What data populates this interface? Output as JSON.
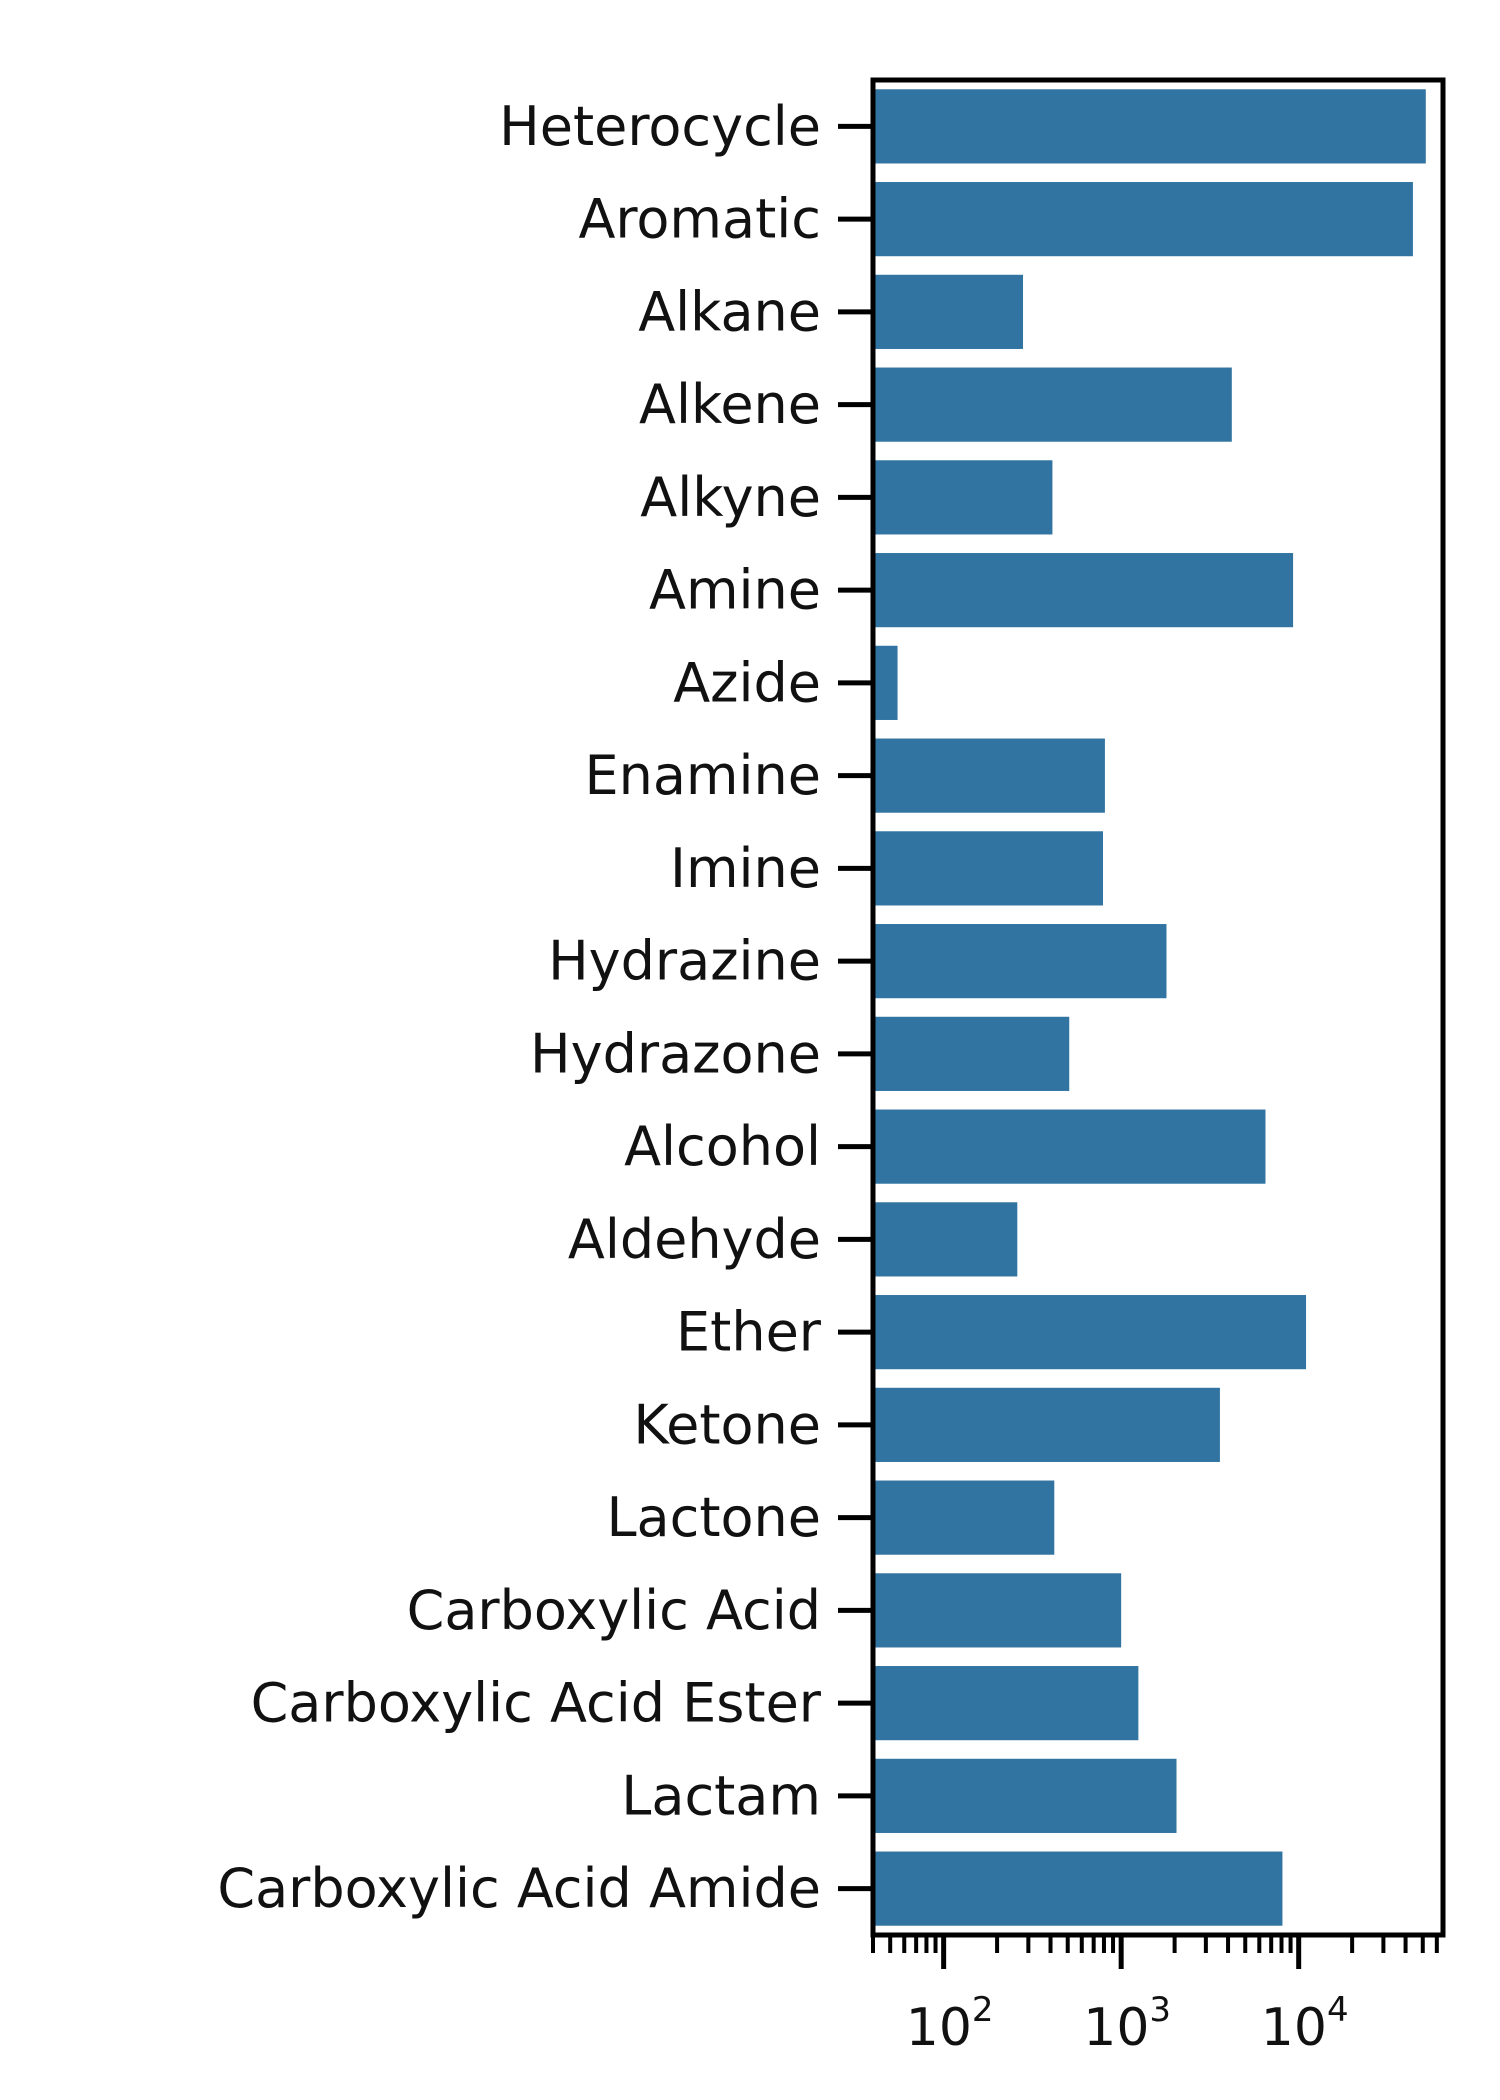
{
  "chart_data": {
    "type": "bar",
    "orientation": "horizontal",
    "title": "",
    "xlabel": "",
    "ylabel": "",
    "x_scale": "log",
    "xlim": [
      40,
      65000
    ],
    "x_ticks": [
      {
        "value": 100,
        "base": "10",
        "exp": "2"
      },
      {
        "value": 1000,
        "base": "10",
        "exp": "3"
      },
      {
        "value": 10000,
        "base": "10",
        "exp": "4"
      }
    ],
    "grid": false,
    "bar_color": "#3274a1",
    "categories": [
      "Heterocycle",
      "Aromatic",
      "Alkane",
      "Alkene",
      "Alkyne",
      "Amine",
      "Azide",
      "Enamine",
      "Imine",
      "Hydrazine",
      "Hydrazone",
      "Alcohol",
      "Aldehyde",
      "Ether",
      "Ketone",
      "Lactone",
      "Carboxylic Acid",
      "Carboxylic Acid Ester",
      "Lactam",
      "Carboxylic Acid Amide"
    ],
    "values": [
      52000,
      44000,
      280,
      4200,
      410,
      9300,
      55,
      810,
      790,
      1800,
      510,
      6500,
      260,
      11000,
      3600,
      420,
      1000,
      1250,
      2050,
      8100
    ]
  }
}
